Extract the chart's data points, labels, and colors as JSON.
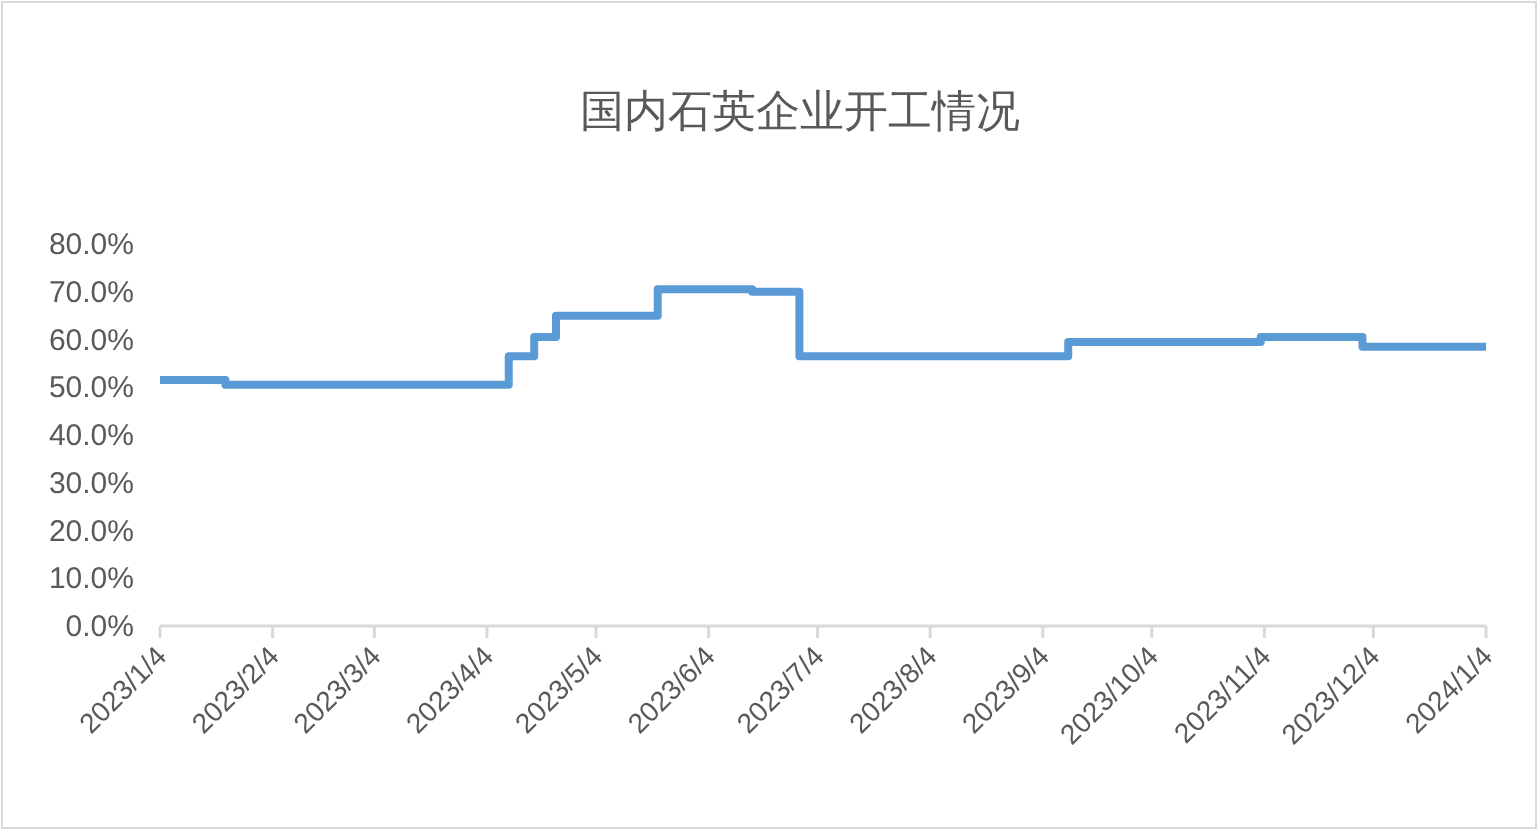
{
  "chart_data": {
    "type": "step",
    "title": "国内石英企业开工情况",
    "x": [
      "2023-01-04",
      "2023-01-22",
      "2023-04-10",
      "2023-04-17",
      "2023-04-23",
      "2023-05-21",
      "2023-06-16",
      "2023-06-29",
      "2023-09-11",
      "2023-11-03",
      "2023-12-01",
      "2024-01-04"
    ],
    "series": [
      {
        "color": "#5b9bd5",
        "values": [
          51.5,
          50.5,
          56.5,
          60.5,
          65,
          70.5,
          70,
          56.5,
          59.5,
          60.5,
          58.5,
          58.5
        ]
      }
    ],
    "xlim": [
      "2023-01-04",
      "2024-01-04"
    ],
    "xticks": [
      {
        "value": "2023-01-04",
        "label": "2023/1/4"
      },
      {
        "value": "2023-02-04",
        "label": "2023/2/4"
      },
      {
        "value": "2023-03-04",
        "label": "2023/3/4"
      },
      {
        "value": "2023-04-04",
        "label": "2023/4/4"
      },
      {
        "value": "2023-05-04",
        "label": "2023/5/4"
      },
      {
        "value": "2023-06-04",
        "label": "2023/6/4"
      },
      {
        "value": "2023-07-04",
        "label": "2023/7/4"
      },
      {
        "value": "2023-08-04",
        "label": "2023/8/4"
      },
      {
        "value": "2023-09-04",
        "label": "2023/9/4"
      },
      {
        "value": "2023-10-04",
        "label": "2023/10/4"
      },
      {
        "value": "2023-11-04",
        "label": "2023/11/4"
      },
      {
        "value": "2023-12-04",
        "label": "2023/12/4"
      },
      {
        "value": "2024-01-04",
        "label": "2024/1/4"
      }
    ],
    "ylim": [
      0,
      80
    ],
    "yticks": [
      {
        "value": 0,
        "label": "0.0%"
      },
      {
        "value": 10,
        "label": "10.0%"
      },
      {
        "value": 20,
        "label": "20.0%"
      },
      {
        "value": 30,
        "label": "30.0%"
      },
      {
        "value": 40,
        "label": "40.0%"
      },
      {
        "value": 50,
        "label": "50.0%"
      },
      {
        "value": 60,
        "label": "60.0%"
      },
      {
        "value": 70,
        "label": "70.0%"
      },
      {
        "value": 80,
        "label": "80.0%"
      }
    ],
    "grid": false
  }
}
